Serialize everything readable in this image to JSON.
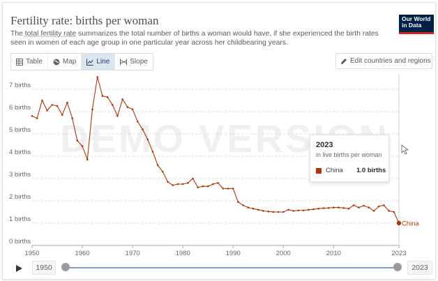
{
  "header": {
    "title": "Fertility rate: births per woman",
    "subtitle_pre": "The ",
    "subtitle_link": "total fertility rate",
    "subtitle_post": " summarizes the total number of births a woman would have, if she experienced the birth rates seen in women of each age group in one particular year across her childbearing years.",
    "logo_line1": "Our World",
    "logo_line2": "in Data"
  },
  "toolbar": {
    "tabs": [
      "Table",
      "Map",
      "Line",
      "Slope"
    ],
    "active_tab": "Line",
    "edit_label": "Edit countries and regions"
  },
  "watermark": "DEMO VERSION",
  "tooltip": {
    "year": "2023",
    "subtitle": "in live births per woman",
    "entity": "China",
    "value": "1.0 births"
  },
  "timeline": {
    "start_year": "1950",
    "end_year": "2023"
  },
  "colors": {
    "series": "#b13507",
    "grid": "#dddddd",
    "accent": "#dbe5f0"
  },
  "chart_data": {
    "type": "line",
    "ylim": [
      0,
      7.5
    ],
    "xlim": [
      1950,
      2023
    ],
    "y_ticks": [
      0,
      1,
      2,
      3,
      4,
      5,
      6,
      7
    ],
    "y_tick_labels": [
      "0 births",
      "1 births",
      "2 births",
      "3 births",
      "4 births",
      "5 births",
      "6 births",
      "7 births"
    ],
    "x_ticks": [
      1950,
      1960,
      1970,
      1980,
      1990,
      2000,
      2010,
      2023
    ],
    "x_tick_labels": [
      "1950",
      "1960",
      "1970",
      "1980",
      "1990",
      "2000",
      "2010",
      "2023"
    ],
    "grid": true,
    "series": [
      {
        "name": "China",
        "color": "#b13507",
        "x": [
          1950,
          1951,
          1952,
          1953,
          1954,
          1955,
          1956,
          1957,
          1958,
          1959,
          1960,
          1961,
          1962,
          1963,
          1964,
          1965,
          1966,
          1967,
          1968,
          1969,
          1970,
          1971,
          1972,
          1973,
          1974,
          1975,
          1976,
          1977,
          1978,
          1979,
          1980,
          1981,
          1982,
          1983,
          1984,
          1985,
          1986,
          1987,
          1988,
          1989,
          1990,
          1991,
          1992,
          1993,
          1994,
          1995,
          1996,
          1997,
          1998,
          1999,
          2000,
          2001,
          2002,
          2003,
          2004,
          2005,
          2006,
          2007,
          2008,
          2009,
          2010,
          2011,
          2012,
          2013,
          2014,
          2015,
          2016,
          2017,
          2018,
          2019,
          2020,
          2021,
          2022,
          2023
        ],
        "y": [
          5.8,
          5.7,
          6.5,
          6.05,
          6.3,
          6.25,
          5.85,
          6.4,
          5.7,
          4.7,
          4.45,
          3.85,
          6.1,
          7.55,
          6.7,
          6.65,
          6.3,
          5.8,
          6.55,
          6.2,
          6.1,
          5.55,
          5.2,
          4.75,
          4.2,
          3.6,
          3.3,
          2.85,
          2.7,
          2.75,
          2.75,
          2.8,
          3.0,
          2.6,
          2.65,
          2.65,
          2.75,
          2.8,
          2.55,
          2.55,
          2.55,
          1.95,
          1.8,
          1.7,
          1.65,
          1.6,
          1.55,
          1.52,
          1.5,
          1.5,
          1.5,
          1.6,
          1.55,
          1.57,
          1.57,
          1.6,
          1.62,
          1.65,
          1.67,
          1.68,
          1.7,
          1.7,
          1.68,
          1.65,
          1.8,
          1.7,
          1.78,
          1.7,
          1.55,
          1.75,
          1.8,
          1.55,
          1.5,
          1.0
        ],
        "end_label": "China"
      }
    ]
  }
}
